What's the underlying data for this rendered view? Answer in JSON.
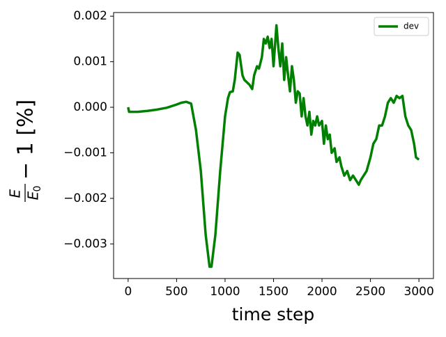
{
  "chart_data": {
    "type": "line",
    "xlabel": "time step",
    "ylabel": {
      "numerator": "E",
      "denominator": "E",
      "subscript": "0",
      "suffix": "− 1 [%]"
    },
    "x": [
      0,
      10,
      100,
      200,
      300,
      400,
      500,
      550,
      600,
      650,
      700,
      750,
      800,
      840,
      860,
      900,
      950,
      1000,
      1030,
      1050,
      1080,
      1100,
      1130,
      1150,
      1180,
      1200,
      1250,
      1280,
      1300,
      1330,
      1350,
      1380,
      1400,
      1420,
      1440,
      1460,
      1480,
      1500,
      1530,
      1550,
      1570,
      1590,
      1610,
      1630,
      1650,
      1670,
      1690,
      1710,
      1730,
      1750,
      1770,
      1790,
      1810,
      1830,
      1850,
      1870,
      1890,
      1910,
      1930,
      1950,
      1970,
      2000,
      2020,
      2040,
      2060,
      2080,
      2100,
      2130,
      2150,
      2180,
      2200,
      2230,
      2260,
      2290,
      2320,
      2350,
      2380,
      2400,
      2430,
      2460,
      2500,
      2530,
      2560,
      2590,
      2620,
      2650,
      2680,
      2710,
      2740,
      2770,
      2800,
      2830,
      2860,
      2890,
      2920,
      2950,
      2970,
      3000
    ],
    "series": [
      {
        "name": "dev",
        "color": "#008000",
        "values": [
          0,
          -0.0001,
          -0.0001,
          -8e-05,
          -5e-05,
          -1e-05,
          6e-05,
          0.0001,
          0.00012,
          8e-05,
          -0.0005,
          -0.0014,
          -0.0028,
          -0.0035,
          -0.0035,
          -0.0028,
          -0.0014,
          -0.0002,
          0.0002,
          0.00033,
          0.00035,
          0.0006,
          0.0012,
          0.00115,
          0.0007,
          0.0006,
          0.0005,
          0.0004,
          0.0007,
          0.0009,
          0.00085,
          0.0011,
          0.0015,
          0.0014,
          0.00155,
          0.0013,
          0.0015,
          0.0009,
          0.0018,
          0.0013,
          0.0009,
          0.0014,
          0.0006,
          0.0011,
          0.0007,
          0.00035,
          0.0009,
          0.0006,
          0.0001,
          0.00035,
          0.0003,
          -0.0002,
          0.0002,
          -0.0002,
          -0.0004,
          -0.0001,
          -0.0006,
          -0.0003,
          -0.0004,
          -0.0002,
          -0.0004,
          -0.0003,
          -0.0008,
          -0.0004,
          -0.0007,
          -0.0006,
          -0.001,
          -0.0009,
          -0.0012,
          -0.0011,
          -0.0013,
          -0.0015,
          -0.0014,
          -0.0016,
          -0.0015,
          -0.0016,
          -0.0017,
          -0.0016,
          -0.0015,
          -0.0014,
          -0.0011,
          -0.0008,
          -0.0007,
          -0.0004,
          -0.0004,
          -0.0002,
          0.0001,
          0.0002,
          0.0001,
          0.00025,
          0.0002,
          0.00025,
          -0.0002,
          -0.0004,
          -0.0005,
          -0.0008,
          -0.0011,
          -0.00115
        ]
      }
    ],
    "xlim": [
      -150,
      3150
    ],
    "xticks": [
      0,
      500,
      1000,
      1500,
      2000,
      2500,
      3000
    ],
    "ylim": [
      -0.00376,
      0.00208
    ],
    "yticks": [
      {
        "value": -0.003,
        "label": "−0.003"
      },
      {
        "value": -0.002,
        "label": "−0.002"
      },
      {
        "value": -0.001,
        "label": "−0.001"
      },
      {
        "value": 0,
        "label": "0.000"
      },
      0.001,
      0.002
    ],
    "legend": "upper right",
    "grid": false
  }
}
